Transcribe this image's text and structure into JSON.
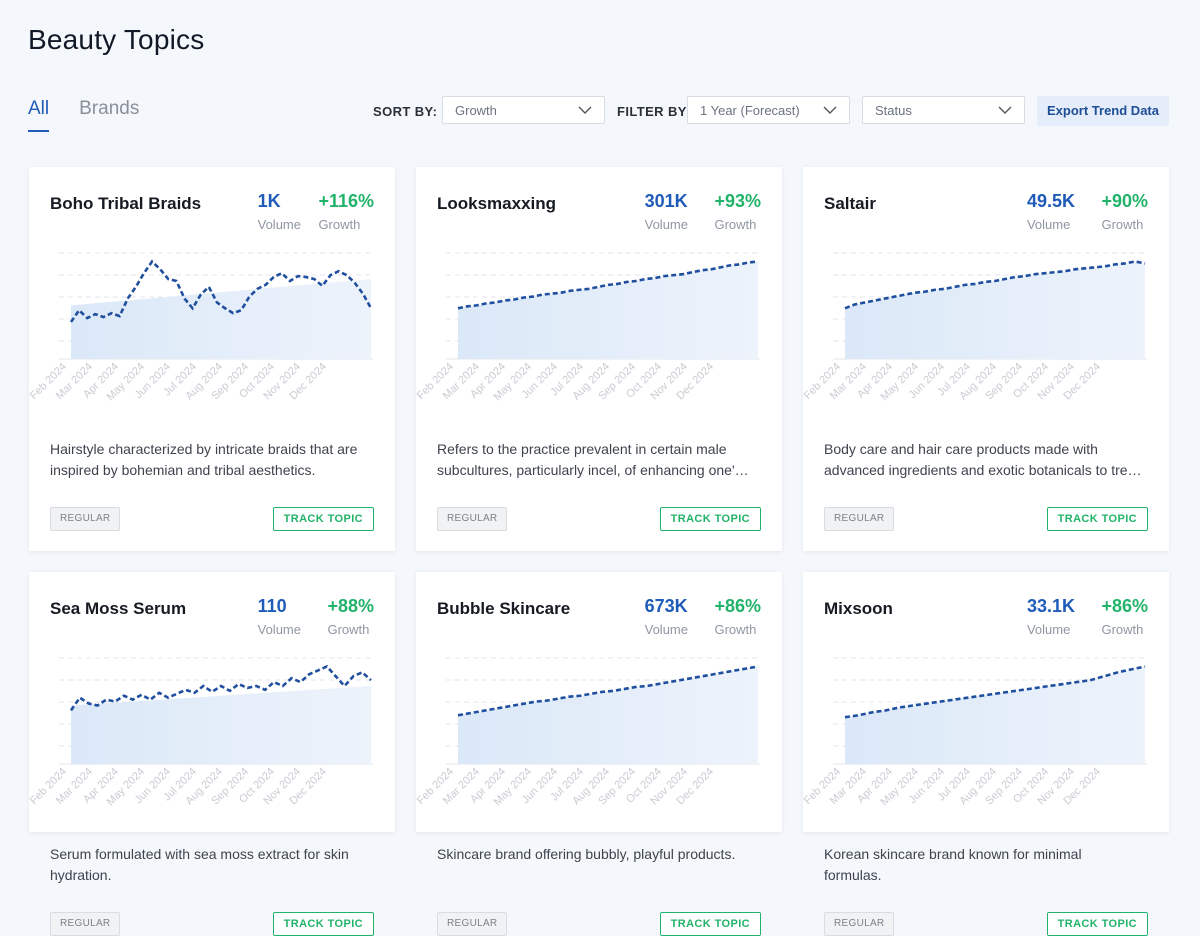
{
  "page": {
    "title": "Beauty Topics"
  },
  "tabs": [
    {
      "label": "All",
      "active": true
    },
    {
      "label": "Brands",
      "active": false
    }
  ],
  "controls": {
    "sort_label": "SORT BY:",
    "sort_value": "Growth",
    "filter_label": "FILTER BY:",
    "filter_value": "1 Year (Forecast)",
    "status_value": "Status",
    "export_label": "Export Trend Data"
  },
  "colors": {
    "accent": "#1f5bb8",
    "growth": "#22b36a",
    "area": "#dbe8f8"
  },
  "stat_labels": {
    "volume": "Volume",
    "growth": "Growth"
  },
  "x_ticks": [
    "Feb 2024",
    "Mar 2024",
    "Apr 2024",
    "May 2024",
    "Jun 2024",
    "Jul 2024",
    "Aug 2024",
    "Sep 2024",
    "Oct 2024",
    "Nov 2024",
    "Dec 2024"
  ],
  "cards": [
    {
      "name": "Boho Tribal Braids",
      "volume": "1K",
      "growth": "+116%",
      "description": "Hairstyle characterized by intricate braids that are inspired by bohemian and tribal aesthetics.",
      "badge": "REGULAR",
      "action": "TRACK TOPIC",
      "series": [
        0.38,
        0.5,
        0.42,
        0.46,
        0.43,
        0.47,
        0.44,
        0.62,
        0.74,
        0.88,
        1.0,
        0.92,
        0.82,
        0.8,
        0.62,
        0.52,
        0.66,
        0.74,
        0.58,
        0.52,
        0.47,
        0.5,
        0.64,
        0.72,
        0.76,
        0.84,
        0.88,
        0.8,
        0.85,
        0.84,
        0.82,
        0.75,
        0.86,
        0.9,
        0.86,
        0.78,
        0.67,
        0.52
      ],
      "trend": [
        0.55,
        0.82
      ]
    },
    {
      "name": "Looksmaxxing",
      "volume": "301K",
      "growth": "+93%",
      "description": "Refers to the practice prevalent in certain male subcultures, particularly incel, of enhancing one's appearance.",
      "badge": "REGULAR",
      "action": "TRACK TOPIC",
      "series": [
        0.52,
        0.54,
        0.55,
        0.57,
        0.58,
        0.6,
        0.61,
        0.63,
        0.64,
        0.66,
        0.67,
        0.68,
        0.7,
        0.71,
        0.72,
        0.74,
        0.76,
        0.77,
        0.79,
        0.8,
        0.82,
        0.83,
        0.85,
        0.86,
        0.87,
        0.89,
        0.91,
        0.92,
        0.94,
        0.96,
        0.97,
        0.99,
        1.0
      ]
    },
    {
      "name": "Saltair",
      "volume": "49.5K",
      "growth": "+90%",
      "description": "Body care and hair care products made with advanced ingredients and exotic botanicals to treat skin and hair.",
      "badge": "REGULAR",
      "action": "TRACK TOPIC",
      "series": [
        0.52,
        0.56,
        0.58,
        0.6,
        0.62,
        0.64,
        0.66,
        0.68,
        0.69,
        0.71,
        0.72,
        0.74,
        0.76,
        0.77,
        0.79,
        0.8,
        0.82,
        0.84,
        0.85,
        0.87,
        0.88,
        0.89,
        0.9,
        0.92,
        0.93,
        0.94,
        0.95,
        0.97,
        0.98,
        1.0,
        0.98
      ]
    },
    {
      "name": "Sea Moss Serum",
      "volume": "110",
      "growth": "+88%",
      "description": "Serum formulated with sea moss extract for skin hydration.",
      "badge": "REGULAR",
      "action": "TRACK TOPIC",
      "series": [
        0.55,
        0.68,
        0.62,
        0.6,
        0.66,
        0.64,
        0.7,
        0.66,
        0.71,
        0.66,
        0.73,
        0.68,
        0.72,
        0.76,
        0.73,
        0.8,
        0.74,
        0.8,
        0.75,
        0.82,
        0.78,
        0.8,
        0.76,
        0.84,
        0.8,
        0.88,
        0.84,
        0.92,
        0.96,
        1.0,
        0.9,
        0.8,
        0.9,
        0.94,
        0.86
      ],
      "trend": [
        0.6,
        0.8
      ]
    },
    {
      "name": "Bubble Skincare",
      "volume": "673K",
      "growth": "+86%",
      "description": "Skincare brand offering bubbly, playful products.",
      "badge": "REGULAR",
      "action": "TRACK TOPIC",
      "series": [
        0.5,
        0.52,
        0.54,
        0.56,
        0.58,
        0.6,
        0.62,
        0.64,
        0.65,
        0.67,
        0.69,
        0.7,
        0.72,
        0.74,
        0.75,
        0.77,
        0.79,
        0.8,
        0.82,
        0.84,
        0.86,
        0.88,
        0.9,
        0.92,
        0.94,
        0.96,
        0.98,
        1.0
      ]
    },
    {
      "name": "Mixsoon",
      "volume": "33.1K",
      "growth": "+86%",
      "description": "Korean skincare brand known for minimal formulas.",
      "badge": "REGULAR",
      "action": "TRACK TOPIC",
      "series": [
        0.48,
        0.5,
        0.53,
        0.55,
        0.58,
        0.6,
        0.62,
        0.64,
        0.66,
        0.68,
        0.7,
        0.72,
        0.74,
        0.76,
        0.78,
        0.8,
        0.82,
        0.84,
        0.86,
        0.9,
        0.94,
        0.97,
        1.0
      ]
    }
  ]
}
